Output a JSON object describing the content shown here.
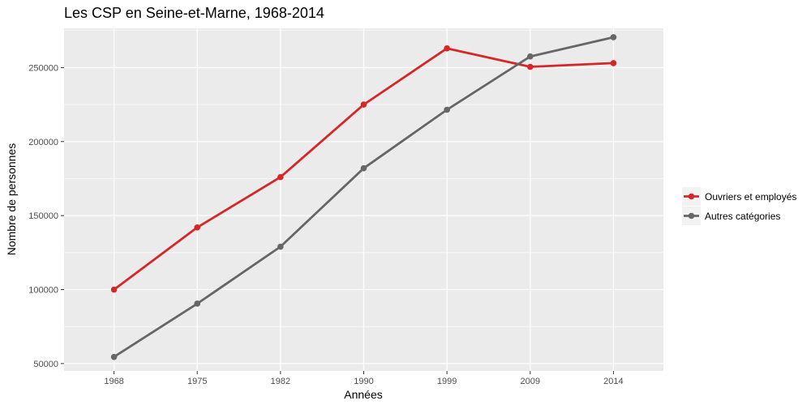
{
  "chart_data": {
    "type": "line",
    "title": "Les CSP en Seine-et-Marne, 1968-2014",
    "xlabel": "Années",
    "ylabel": "Nombre de personnes",
    "categories": [
      "1968",
      "1975",
      "1982",
      "1990",
      "1999",
      "2009",
      "2014"
    ],
    "yticks": [
      50000,
      100000,
      150000,
      200000,
      250000
    ],
    "ytick_labels": [
      "50000",
      "100000",
      "150000",
      "200000",
      "250000"
    ],
    "ylim": [
      45000,
      276500
    ],
    "grid": true,
    "legend_position": "right",
    "background": "#ebebeb",
    "series": [
      {
        "name": "Ouvriers et employés",
        "color": "#d62728",
        "values": [
          100000,
          142000,
          176000,
          225000,
          263000,
          250500,
          253000
        ]
      },
      {
        "name": "Autres catégories",
        "color": "#666666",
        "values": [
          54500,
          90500,
          129000,
          182000,
          221500,
          257500,
          270500
        ]
      }
    ]
  }
}
